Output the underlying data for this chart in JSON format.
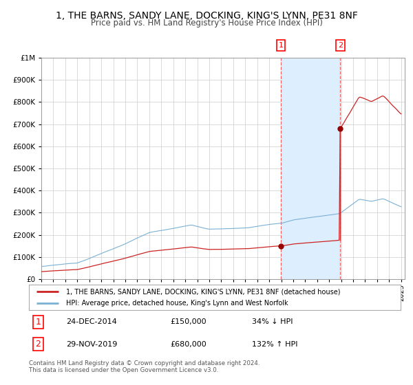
{
  "title": "1, THE BARNS, SANDY LANE, DOCKING, KING'S LYNN, PE31 8NF",
  "subtitle": "Price paid vs. HM Land Registry's House Price Index (HPI)",
  "legend_line1": "1, THE BARNS, SANDY LANE, DOCKING, KING'S LYNN, PE31 8NF (detached house)",
  "legend_line2": "HPI: Average price, detached house, King's Lynn and West Norfolk",
  "transaction1_date": "24-DEC-2014",
  "transaction1_price": "£150,000",
  "transaction1_hpi": "34% ↓ HPI",
  "transaction2_date": "29-NOV-2019",
  "transaction2_price": "£680,000",
  "transaction2_hpi": "132% ↑ HPI",
  "footnote": "Contains HM Land Registry data © Crown copyright and database right 2024.\nThis data is licensed under the Open Government Licence v3.0.",
  "bg_color": "#ffffff",
  "plot_bg": "#ffffff",
  "hpi_line_color": "#7ab0d4",
  "property_line_color": "#cc2222",
  "marker_color": "#990000",
  "shade_color": "#ddeeff",
  "dashed_color": "#ee6666",
  "ylim_max": 1000000,
  "x_start_year": 1995,
  "x_end_year": 2025,
  "transaction1_year": 2014.97,
  "transaction1_value": 150000,
  "transaction2_year": 2019.92,
  "transaction2_value": 680000
}
